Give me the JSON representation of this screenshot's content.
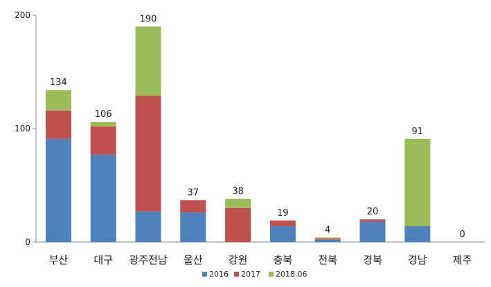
{
  "chart_data": {
    "type": "bar",
    "stacked": true,
    "categories": [
      "부산",
      "대구",
      "광주전남",
      "울산",
      "강원",
      "충북",
      "전북",
      "경북",
      "경남",
      "제주"
    ],
    "series": [
      {
        "name": "2016",
        "color": "#4f81bd",
        "values": [
          91,
          77,
          27,
          26,
          0,
          14,
          2,
          18,
          14,
          0
        ]
      },
      {
        "name": "2017",
        "color": "#c0504d",
        "values": [
          25,
          25,
          102,
          11,
          30,
          5,
          1,
          2,
          0,
          0
        ]
      },
      {
        "name": "2018.06",
        "color": "#9bbb59",
        "values": [
          18,
          4,
          61,
          0,
          8,
          0,
          1,
          0,
          77,
          0
        ]
      }
    ],
    "totals": [
      "134",
      "106",
      "190",
      "37",
      "38",
      "19",
      "4",
      "20",
      "91",
      "0"
    ],
    "y_ticks": [
      "0",
      "100",
      "200"
    ],
    "ylim": [
      0,
      200
    ],
    "grid": false,
    "legend_position": "bottom"
  }
}
